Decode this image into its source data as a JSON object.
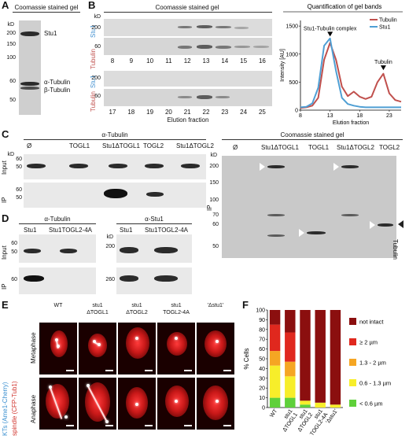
{
  "panels": {
    "A": "A",
    "B": "B",
    "C": "C",
    "D": "D",
    "E": "E",
    "F": "F"
  },
  "a": {
    "title": "Coomassie stained gel",
    "kd": "kD",
    "ticks": [
      "200",
      "150",
      "100",
      "60",
      "50"
    ],
    "labels": [
      "Stu1",
      "α-Tubulin",
      "β-Tubulin"
    ]
  },
  "b": {
    "title": "Coomassie stained gel",
    "kd": "kD",
    "row1_ticks": [
      "200",
      "60"
    ],
    "row2_ticks": [
      "200",
      "60"
    ],
    "stu1": "Stu1",
    "tubulin": "Tubulin",
    "fractions_top": [
      "8",
      "9",
      "10",
      "11",
      "12",
      "13",
      "14",
      "15",
      "16"
    ],
    "fractions_bottom": [
      "17",
      "18",
      "19",
      "20",
      "21",
      "22",
      "23",
      "24",
      "25"
    ],
    "xlabel": "Elution fraction"
  },
  "chart_data": {
    "type": "line",
    "title": "Quantification of gel bands",
    "xlabel": "Elution fraction",
    "ylabel": "Intensity [AU]",
    "xlim": [
      8,
      25
    ],
    "ylim": [
      0,
      1600
    ],
    "xticks": [
      "8",
      "13",
      "18",
      "23"
    ],
    "yticks": [
      "0",
      "500",
      "1000",
      "1500"
    ],
    "legend": [
      "Tubulin",
      "Stu1"
    ],
    "legend_position": "top-right",
    "annotations": [
      "Stu1-Tubulin complex",
      "Tubulin"
    ],
    "series": [
      {
        "name": "Tubulin",
        "color": "#c0504d",
        "x": [
          8,
          9,
          10,
          11,
          12,
          13,
          14,
          15,
          16,
          17,
          18,
          19,
          20,
          21,
          22,
          23,
          24,
          25
        ],
        "y": [
          40,
          50,
          80,
          220,
          900,
          1200,
          900,
          420,
          250,
          330,
          240,
          200,
          240,
          500,
          650,
          300,
          180,
          150
        ]
      },
      {
        "name": "Stu1",
        "color": "#4f9fd4",
        "x": [
          8,
          9,
          10,
          11,
          12,
          13,
          14,
          15,
          16,
          17,
          18,
          19,
          20,
          21,
          22,
          23,
          24,
          25
        ],
        "y": [
          50,
          60,
          120,
          400,
          1150,
          1280,
          700,
          220,
          110,
          80,
          60,
          50,
          50,
          50,
          50,
          50,
          50,
          50
        ]
      }
    ]
  },
  "c": {
    "title_left": "α-Tubulin",
    "title_right": "Coomassie stained gel",
    "kd": "kD",
    "lanes": [
      "Ø",
      "TOGL1",
      "Stu1ΔTOGL1",
      "TOGL2",
      "Stu1ΔTOGL2"
    ],
    "lanes_right": [
      "Ø",
      "Stu1ΔTOGL1",
      "TOGL1",
      "Stu1ΔTOGL2",
      "TOGL2"
    ],
    "input": "Input",
    "ip": "IP",
    "input_ticks": [
      "60",
      "50"
    ],
    "ip_ticks": [
      "60",
      "50"
    ],
    "right_ticks": [
      "200",
      "150",
      "100",
      "70",
      "60",
      "50"
    ],
    "tubulin": "Tubulin"
  },
  "d": {
    "title_left": "α-Tubulin",
    "title_right": "α-Stu1",
    "kd": "kD",
    "lanes": [
      "Stu1",
      "Stu1TOGL2-4A"
    ],
    "input": "Input",
    "ip": "IP",
    "left_input_ticks": [
      "60",
      "50"
    ],
    "left_ip_ticks": [
      "60"
    ],
    "right_input_ticks": [
      "200"
    ],
    "right_ip_ticks": [
      "260"
    ]
  },
  "e": {
    "cols": [
      "WT",
      "stu1\nΔTOGL1",
      "stu1\nΔTOGL2",
      "stu1\nTOGL2-4A",
      "'Δstu1'"
    ],
    "rows": [
      "Metaphase",
      "Anaphase"
    ],
    "side_kts": "KTs",
    "side_ame": "(Ame1-Cherry)",
    "side_spindle": "spindle",
    "side_cfp": "(CFP-Tub1)"
  },
  "f": {
    "ylabel": "% Cells",
    "yticks": [
      "0",
      "10",
      "20",
      "30",
      "40",
      "50",
      "60",
      "70",
      "80",
      "90",
      "100"
    ],
    "categories": [
      "WT",
      "stu1\nΔTOGL1",
      "stu1\nΔTOGL2",
      "stu1\nTOGL2-4A",
      "'Δstu1'"
    ],
    "legend": [
      "not intact",
      "≥ 2 µm",
      "1.3 - 2 µm",
      "0.6 - 1.3 µm",
      "< 0.6 µm"
    ],
    "colors": [
      "#8b0f0f",
      "#e0281e",
      "#f5a623",
      "#f7ee2a",
      "#5fd03a"
    ],
    "stacks": [
      [
        15,
        27,
        15,
        33,
        10
      ],
      [
        23,
        30,
        15,
        22,
        10
      ],
      [
        93,
        0,
        0,
        4,
        3
      ],
      [
        95,
        0,
        0,
        5,
        0
      ],
      [
        97,
        0,
        0,
        3,
        0
      ]
    ]
  }
}
